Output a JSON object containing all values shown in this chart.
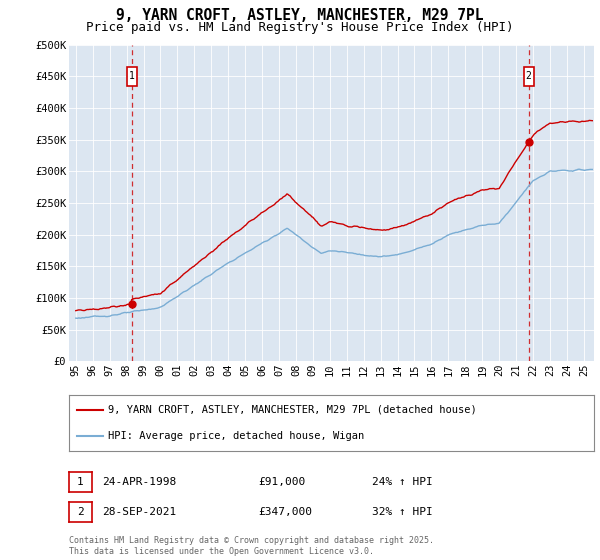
{
  "title": "9, YARN CROFT, ASTLEY, MANCHESTER, M29 7PL",
  "subtitle": "Price paid vs. HM Land Registry's House Price Index (HPI)",
  "ylim": [
    0,
    500000
  ],
  "yticks": [
    0,
    50000,
    100000,
    150000,
    200000,
    250000,
    300000,
    350000,
    400000,
    450000,
    500000
  ],
  "ytick_labels": [
    "£0",
    "£50K",
    "£100K",
    "£150K",
    "£200K",
    "£250K",
    "£300K",
    "£350K",
    "£400K",
    "£450K",
    "£500K"
  ],
  "xlim_start": 1994.6,
  "xlim_end": 2025.6,
  "bg_color": "#dce6f1",
  "red_line_color": "#cc0000",
  "blue_line_color": "#7aadd4",
  "sale1_x": 1998.3,
  "sale1_y": 91000,
  "sale1_label": "1",
  "sale1_date": "24-APR-1998",
  "sale1_price": "£91,000",
  "sale1_hpi": "24% ↑ HPI",
  "sale2_x": 2021.74,
  "sale2_y": 347000,
  "sale2_label": "2",
  "sale2_date": "28-SEP-2021",
  "sale2_price": "£347,000",
  "sale2_hpi": "32% ↑ HPI",
  "legend_line1": "9, YARN CROFT, ASTLEY, MANCHESTER, M29 7PL (detached house)",
  "legend_line2": "HPI: Average price, detached house, Wigan",
  "footer": "Contains HM Land Registry data © Crown copyright and database right 2025.\nThis data is licensed under the Open Government Licence v3.0.",
  "title_fontsize": 10.5,
  "subtitle_fontsize": 9,
  "tick_fontsize": 7.5,
  "legend_fontsize": 7.5,
  "table_fontsize": 8,
  "footer_fontsize": 6
}
